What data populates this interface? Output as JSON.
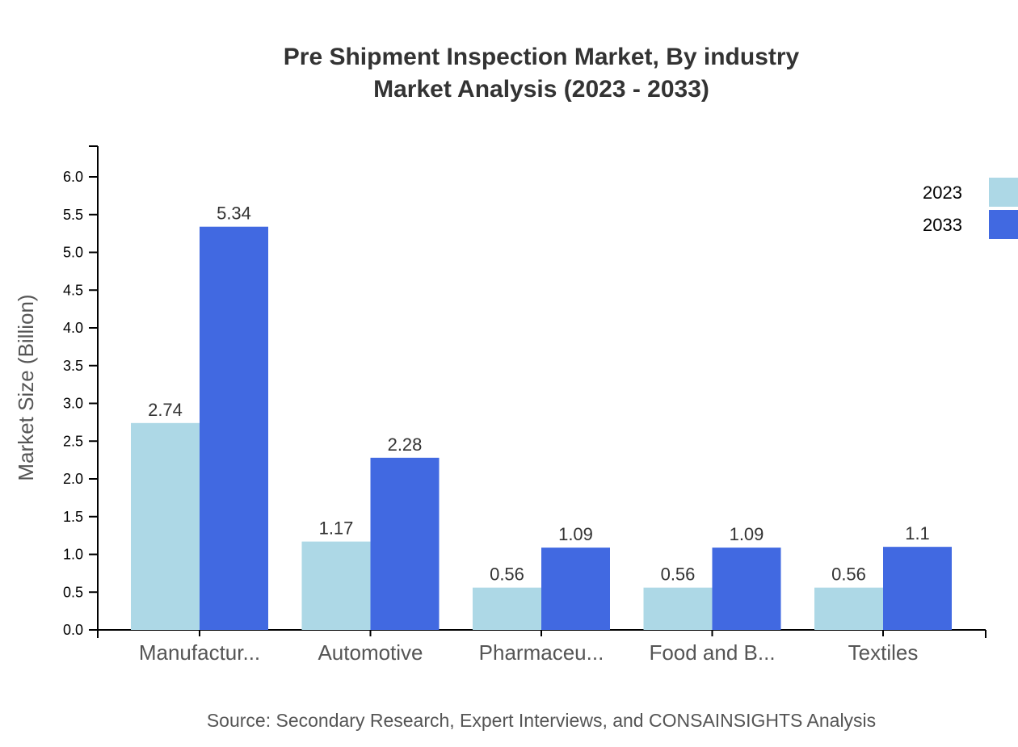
{
  "chart_data": {
    "type": "bar",
    "title": "Pre Shipment Inspection Market, By industry",
    "subtitle": "Market Analysis (2023 - 2033)",
    "xlabel": "",
    "ylabel": "Market Size (Billion)",
    "ylim": [
      0,
      6.0
    ],
    "yticks": [
      "0.0",
      "0.5",
      "1.0",
      "1.5",
      "2.0",
      "2.5",
      "3.0",
      "3.5",
      "4.0",
      "4.5",
      "5.0",
      "5.5",
      "6.0"
    ],
    "categories": [
      "Manufactur...",
      "Automotive",
      "Pharmaceu...",
      "Food and B...",
      "Textiles"
    ],
    "series": [
      {
        "name": "2023",
        "color": "#ADD8E6",
        "values": [
          2.74,
          1.17,
          0.56,
          0.56,
          0.56
        ],
        "labels": [
          "2.74",
          "1.17",
          "0.56",
          "0.56",
          "0.56"
        ]
      },
      {
        "name": "2033",
        "color": "#4169E1",
        "values": [
          5.34,
          2.28,
          1.09,
          1.09,
          1.1
        ],
        "labels": [
          "5.34",
          "2.28",
          "1.09",
          "1.09",
          "1.1"
        ]
      }
    ],
    "grid": false,
    "legend": "top-right",
    "source": "Source: Secondary Research, Expert Interviews, and CONSAINSIGHTS Analysis"
  }
}
